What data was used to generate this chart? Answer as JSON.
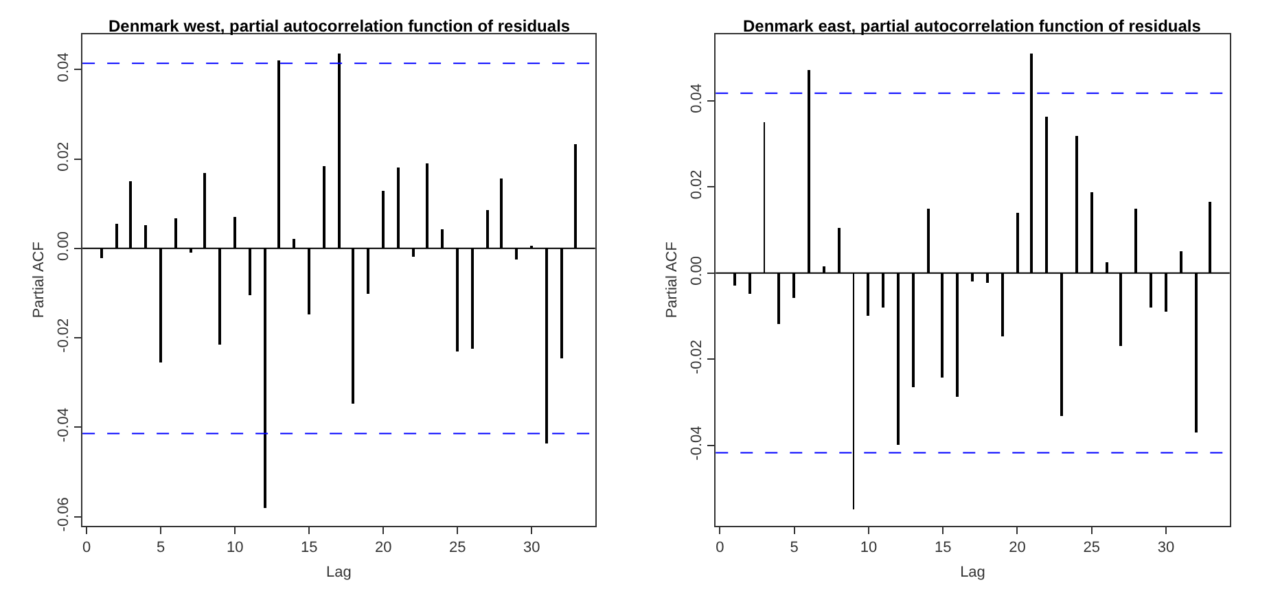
{
  "chart_data": [
    {
      "type": "bar",
      "title": "Denmark west, partial autocorrelation function of residuals",
      "xlabel": "Lag",
      "ylabel": "Partial ACF",
      "x": [
        1,
        2,
        3,
        4,
        5,
        6,
        7,
        8,
        9,
        10,
        11,
        12,
        13,
        14,
        15,
        16,
        17,
        18,
        19,
        20,
        21,
        22,
        23,
        24,
        25,
        26,
        27,
        28,
        29,
        30,
        31,
        32,
        33
      ],
      "series": [
        {
          "color": "#000000",
          "values": [
            -0.0021,
            0.0055,
            0.0149,
            0.0052,
            -0.0254,
            0.0067,
            -0.001,
            0.0169,
            -0.0215,
            0.0072,
            -0.0103,
            -0.058,
            0.0421,
            0.0022,
            -0.0146,
            0.0183,
            0.0436,
            -0.0347,
            -0.0101,
            0.0129,
            0.0181,
            -0.0019,
            0.019,
            0.0044,
            -0.0229,
            -0.0223,
            0.0087,
            0.0158,
            -0.0024,
            0.0004,
            -0.0437,
            -0.0247,
            0.0232
          ]
        }
      ],
      "xlim": [
        -0.28,
        34.28
      ],
      "xticks": [
        0,
        5,
        10,
        15,
        20,
        25,
        30
      ],
      "ylim": [
        -0.062,
        0.0479
      ],
      "yticks": [
        {
          "value": -0.06,
          "label": "-0.06"
        },
        {
          "value": -0.04,
          "label": "-0.04"
        },
        {
          "value": -0.02,
          "label": "-0.02"
        },
        {
          "value": 0,
          "label": "0.00"
        },
        {
          "value": 0.02,
          "label": "0.02"
        },
        {
          "value": 0.04,
          "label": "0.04"
        }
      ],
      "ref_lines": [
        {
          "axis": "y",
          "value": 0.0414,
          "color": "#0000ff",
          "line_style": "dashed"
        },
        {
          "axis": "y",
          "value": -0.0414,
          "color": "#0000ff",
          "line_style": "dashed"
        },
        {
          "axis": "y",
          "value": 0,
          "color": "#000000",
          "line_style": "solid"
        }
      ]
    },
    {
      "type": "bar",
      "title": "Denmark east, partial autocorrelation function of residuals",
      "xlabel": "Lag",
      "ylabel": "Partial ACF",
      "x": [
        1,
        2,
        3,
        4,
        5,
        6,
        7,
        8,
        9,
        10,
        11,
        12,
        13,
        14,
        15,
        16,
        17,
        18,
        19,
        20,
        21,
        22,
        23,
        24,
        25,
        26,
        27,
        28,
        29,
        30,
        31,
        32,
        33
      ],
      "series": [
        {
          "color": "#000000",
          "values": [
            -0.003,
            -0.0049,
            0.0349,
            -0.0118,
            -0.0056,
            0.0472,
            0.0015,
            0.0104,
            -0.0547,
            -0.01,
            -0.0081,
            -0.0399,
            -0.0264,
            0.015,
            -0.0242,
            -0.0286,
            -0.002,
            -0.0023,
            -0.0148,
            0.0139,
            0.0509,
            0.0364,
            -0.0331,
            0.0317,
            0.0189,
            0.0026,
            -0.0168,
            0.0148,
            -0.0081,
            -0.009,
            0.005,
            -0.0369,
            0.0165
          ]
        }
      ],
      "xlim": [
        -0.28,
        34.28
      ],
      "xticks": [
        0,
        5,
        10,
        15,
        20,
        25,
        30
      ],
      "ylim": [
        -0.0586,
        0.0554
      ],
      "yticks": [
        {
          "value": -0.04,
          "label": "-0.04"
        },
        {
          "value": -0.02,
          "label": "-0.02"
        },
        {
          "value": 0,
          "label": "0.00"
        },
        {
          "value": 0.02,
          "label": "0.02"
        },
        {
          "value": 0.04,
          "label": "0.04"
        }
      ],
      "ref_lines": [
        {
          "axis": "y",
          "value": 0.0417,
          "color": "#0000ff",
          "line_style": "dashed"
        },
        {
          "axis": "y",
          "value": -0.0417,
          "color": "#0000ff",
          "line_style": "dashed"
        },
        {
          "axis": "y",
          "value": 0,
          "color": "#000000",
          "line_style": "solid"
        }
      ]
    }
  ]
}
